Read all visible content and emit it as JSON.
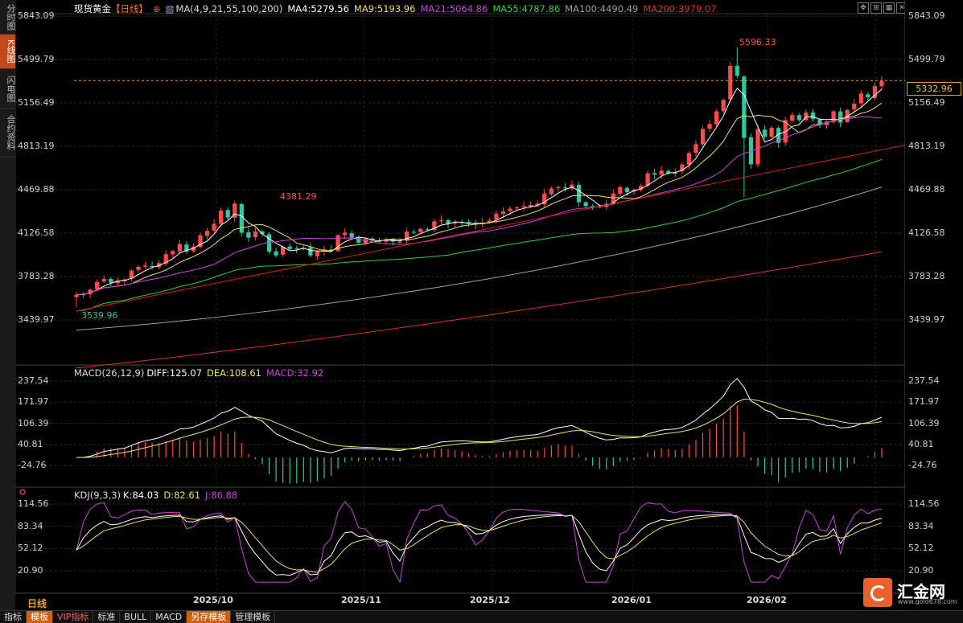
{
  "side_tabs": [
    "分时图",
    "K线图",
    "闪电图",
    "合约资料"
  ],
  "active_side_tab": 1,
  "header": {
    "symbol": "现货黄金",
    "period": "【日线】",
    "ma_label": "MA(4,9,21,55,100,200)",
    "ma4": "MA4:5279.56",
    "ma9": "MA9:5193.96",
    "ma21": "MA21:5064.86",
    "ma55": "MA55:4787.86",
    "ma100": "MA100:4490.49",
    "ma200": "MA200:3979.07"
  },
  "macd_header": {
    "label": "MACD(26,12,9)",
    "diff": "DIFF:125.07",
    "dea": "DEA:108.61",
    "macd": "MACD:32.92"
  },
  "kdj_header": {
    "label": "KDJ(9,3,3)",
    "k": "K:84.03",
    "d": "D:82.61",
    "j": "J:86.88"
  },
  "price_axis": [
    "5843.09",
    "5499.79",
    "5156.49",
    "4813.19",
    "4469.88",
    "4126.58",
    "3783.28",
    "3439.97"
  ],
  "macd_axis": [
    "237.54",
    "171.97",
    "106.39",
    "40.81",
    "-24.76"
  ],
  "kdj_axis": [
    "114.56",
    "83.34",
    "52.12",
    "20.90"
  ],
  "current_price": "5332.96",
  "annotations": {
    "high1": "4381.29",
    "high2": "5596.33",
    "low": "3539.96"
  },
  "x_labels": [
    "2025/10",
    "2025/11",
    "2025/12",
    "2026/01",
    "2026/02"
  ],
  "period_label": "日线",
  "bottom_buttons": [
    "指标",
    "模板",
    "VIP指标",
    "标准",
    "BULL",
    "MACD",
    "另存模板",
    "管理模板"
  ],
  "logo": {
    "name": "汇金网",
    "url": "www.gold678.com"
  },
  "colors": {
    "up": "#ff4a4a",
    "down": "#30c8a0",
    "ma4": "#ffffff",
    "ma9": "#f0e060",
    "ma21": "#d040e0",
    "ma55": "#30d030",
    "ma100": "#a0a0a0",
    "ma200": "#e03030"
  },
  "chart_data": {
    "type": "candlestick",
    "x": [
      "2025-09-17",
      "2025-09-18",
      "2025-09-19",
      "2025-09-22",
      "2025-09-23",
      "2025-09-24",
      "2025-09-25",
      "2025-09-26",
      "2025-09-29",
      "2025-09-30",
      "2025-10-01",
      "2025-10-02",
      "2025-10-03",
      "2025-10-06",
      "2025-10-07",
      "2025-10-08",
      "2025-10-09",
      "2025-10-10",
      "2025-10-13",
      "2025-10-14",
      "2025-10-15",
      "2025-10-16",
      "2025-10-17",
      "2025-10-20",
      "2025-10-21",
      "2025-10-22",
      "2025-10-23",
      "2025-10-24",
      "2025-10-27",
      "2025-10-28",
      "2025-10-29",
      "2025-10-30",
      "2025-10-31",
      "2025-11-03",
      "2025-11-04",
      "2025-11-05",
      "2025-11-06",
      "2025-11-07",
      "2025-11-10",
      "2025-11-11",
      "2025-11-12",
      "2025-11-13",
      "2025-11-14",
      "2025-11-17",
      "2025-11-18",
      "2025-11-19",
      "2025-11-20",
      "2025-11-21",
      "2025-11-24",
      "2025-11-25",
      "2025-11-26",
      "2025-11-27",
      "2025-11-28",
      "2025-12-01",
      "2025-12-02",
      "2025-12-03",
      "2025-12-04",
      "2025-12-05",
      "2025-12-08",
      "2025-12-09",
      "2025-12-10",
      "2025-12-11",
      "2025-12-12",
      "2025-12-15",
      "2025-12-16",
      "2025-12-17",
      "2025-12-18",
      "2025-12-19",
      "2025-12-22",
      "2025-12-23",
      "2025-12-24",
      "2025-12-25",
      "2025-12-26",
      "2025-12-29",
      "2025-12-30",
      "2025-12-31",
      "2026-01-01",
      "2026-01-02",
      "2026-01-05",
      "2026-01-06",
      "2026-01-07",
      "2026-01-08",
      "2026-01-09",
      "2026-01-12",
      "2026-01-13",
      "2026-01-14",
      "2026-01-15",
      "2026-01-16",
      "2026-01-19",
      "2026-01-20",
      "2026-01-21",
      "2026-01-22",
      "2026-01-23",
      "2026-01-26",
      "2026-01-27",
      "2026-01-28",
      "2026-01-29",
      "2026-01-30",
      "2026-02-02",
      "2026-02-03",
      "2026-02-04",
      "2026-02-05",
      "2026-02-06",
      "2026-02-09",
      "2026-02-10",
      "2026-02-11",
      "2026-02-12",
      "2026-02-13",
      "2026-02-16",
      "2026-02-17",
      "2026-02-18",
      "2026-02-19",
      "2026-02-20",
      "2026-02-23",
      "2026-02-24",
      "2026-02-25",
      "2026-02-26",
      "2026-02-27"
    ],
    "close": [
      3640,
      3645,
      3680,
      3740,
      3765,
      3735,
      3750,
      3760,
      3830,
      3860,
      3870,
      3860,
      3890,
      3960,
      3985,
      4040,
      3980,
      4020,
      4110,
      4145,
      4200,
      4305,
      4250,
      4360,
      4130,
      4090,
      4140,
      4120,
      3980,
      3950,
      4020,
      4000,
      4000,
      4010,
      3950,
      3980,
      4000,
      3990,
      4110,
      4130,
      4090,
      4050,
      4080,
      4070,
      4060,
      4080,
      4060,
      4060,
      4140,
      4130,
      4160,
      4150,
      4220,
      4230,
      4200,
      4210,
      4210,
      4200,
      4195,
      4210,
      4225,
      4280,
      4300,
      4320,
      4330,
      4340,
      4350,
      4360,
      4440,
      4480,
      4490,
      4480,
      4510,
      4370,
      4340,
      4330,
      4340,
      4360,
      4440,
      4490,
      4450,
      4470,
      4500,
      4600,
      4590,
      4620,
      4600,
      4610,
      4670,
      4760,
      4830,
      4950,
      4990,
      5090,
      5180,
      5450,
      5370,
      4880,
      4670,
      4950,
      4890,
      4960,
      4840,
      5020,
      5060,
      5020,
      5080,
      5030,
      4980,
      5010,
      5090,
      5000,
      5100,
      5150,
      5230,
      5200,
      5290,
      5330
    ],
    "ylim": [
      3330,
      5850
    ],
    "price_ticks": [
      5843.09,
      5499.79,
      5156.49,
      4813.19,
      4469.88,
      4126.58,
      3783.28,
      3439.97
    ],
    "current_price": 5332.96,
    "annotated_high_1": 4381.29,
    "annotated_high_2": 5596.33,
    "annotated_low": 3539.96,
    "ma_latest": {
      "MA4": 5279.56,
      "MA9": 5193.96,
      "MA21": 5064.86,
      "MA55": 4787.86,
      "MA100": 4490.49,
      "MA200": 3979.07
    },
    "macd": {
      "DIFF": 125.07,
      "DEA": 108.61,
      "MACD": 32.92,
      "ylim": [
        -60,
        250
      ]
    },
    "kdj": {
      "K": 84.03,
      "D": 82.61,
      "J": 86.88,
      "ylim": [
        0,
        120
      ]
    }
  }
}
